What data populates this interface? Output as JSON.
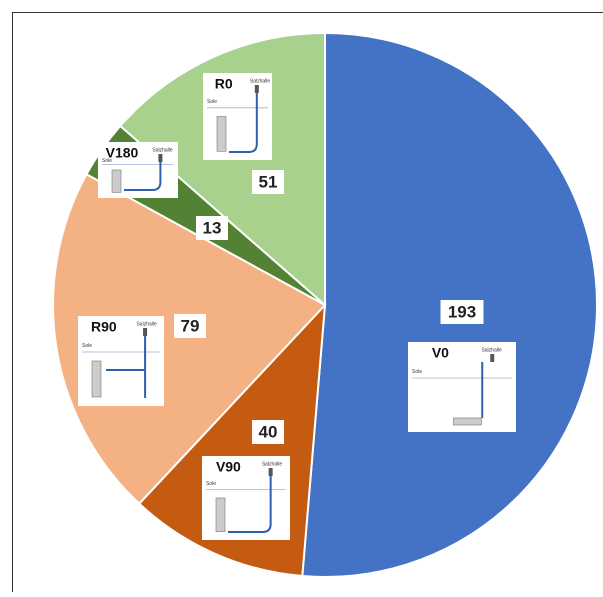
{
  "chart_data": {
    "type": "pie",
    "categories": [
      "V0",
      "V90",
      "R90",
      "V180",
      "R0"
    ],
    "values": [
      193,
      40,
      79,
      13,
      51
    ],
    "colors": [
      "#4472c4",
      "#c55a11",
      "#f4b183",
      "#548235",
      "#a9d18e"
    ],
    "icon_texts": [
      "Sole",
      "Salzhalle"
    ]
  }
}
